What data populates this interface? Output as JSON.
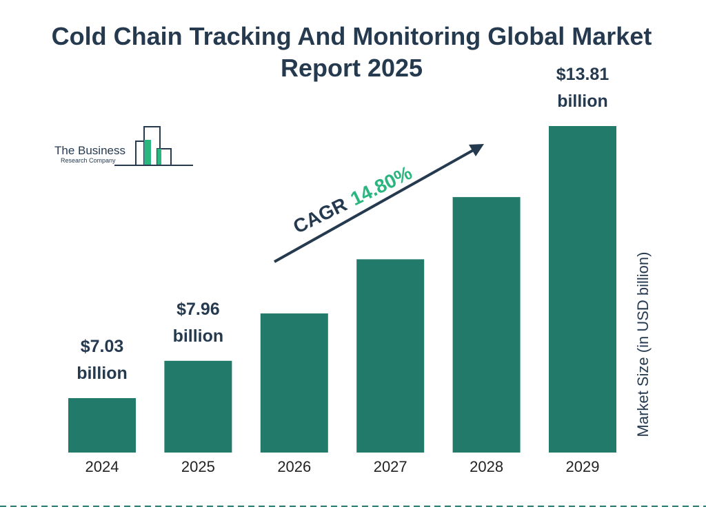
{
  "chart_data": {
    "type": "bar",
    "title": "Cold Chain Tracking And Monitoring Global Market Report 2025",
    "logo": {
      "line1": "The Business",
      "line2": "Research Company"
    },
    "y_label": "Market Size (in USD billion)",
    "annotation": {
      "label": "CAGR",
      "value": "14.80%"
    },
    "categories": [
      "2024",
      "2025",
      "2026",
      "2027",
      "2028",
      "2029"
    ],
    "values": [
      7.03,
      7.96,
      9.14,
      10.49,
      12.04,
      13.81
    ],
    "value_labels": [
      "$7.03 billion",
      "$7.96 billion",
      null,
      null,
      null,
      "$13.81 billion"
    ],
    "color": "#217a6a"
  }
}
